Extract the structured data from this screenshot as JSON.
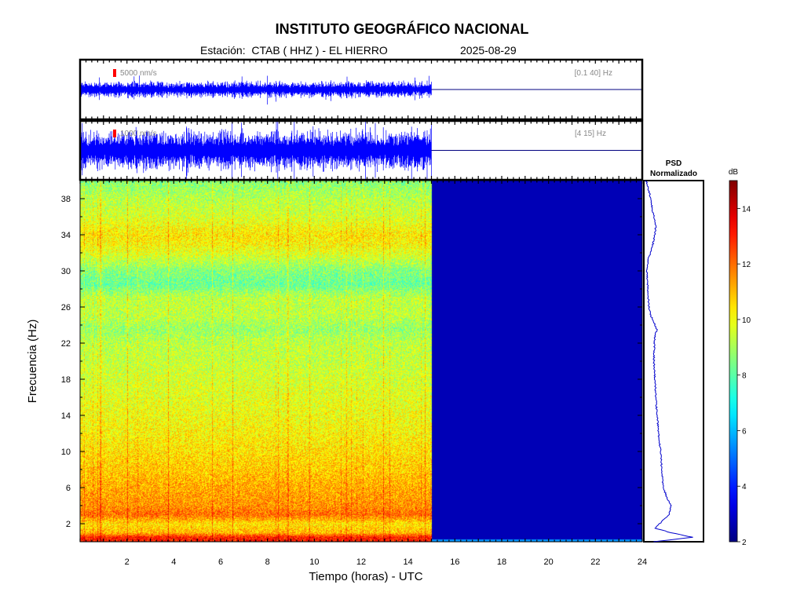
{
  "header": {
    "title": "INSTITUTO GEOGRÁFICO NACIONAL",
    "station": "Estación:  CTAB ( HHZ ) - EL HIERRO",
    "date": "2025-08-29"
  },
  "colors": {
    "trace": "#0000ff",
    "colormap": [
      "#00008f",
      "#0000ff",
      "#00ffff",
      "#ffff00",
      "#ff0000",
      "#800000"
    ]
  },
  "chart_data": [
    {
      "type": "line",
      "panel": "seismogram-broadband",
      "scale_label": "5000 nm/s",
      "band_label": "[0.1 40] Hz",
      "x_range": [
        0,
        24
      ],
      "data_end_hour": 15
    },
    {
      "type": "line",
      "panel": "seismogram-filtered",
      "scale_label": "1000 nm/s",
      "band_label": "[4 15] Hz",
      "x_range": [
        0,
        24
      ],
      "data_end_hour": 15
    },
    {
      "type": "heatmap",
      "panel": "spectrogram",
      "xlabel": "Tiempo (horas) - UTC",
      "ylabel": "Frecuencia  (Hz)",
      "xlim": [
        0,
        24
      ],
      "ylim": [
        0,
        40
      ],
      "x_ticks": [
        "2",
        "4",
        "6",
        "8",
        "10",
        "12",
        "14",
        "16",
        "18",
        "20",
        "22",
        "24"
      ],
      "y_ticks": [
        "2",
        "6",
        "10",
        "14",
        "18",
        "22",
        "26",
        "30",
        "34",
        "38"
      ],
      "data_end_hour": 15,
      "mean_db_profile": {
        "frequency": [
          0.5,
          1,
          2,
          3,
          4,
          6,
          8,
          10,
          12,
          14,
          16,
          18,
          20,
          22,
          23.5,
          25,
          27,
          28.5,
          30,
          32,
          33,
          34,
          35,
          36,
          38,
          40
        ],
        "db": [
          13,
          11,
          10.5,
          12,
          11.5,
          11.2,
          10.8,
          10.5,
          10.2,
          10,
          9.8,
          9.6,
          9.4,
          9.3,
          8.8,
          9.3,
          9.3,
          8.2,
          8.6,
          9.8,
          10.2,
          10.4,
          10,
          9.6,
          9.2,
          8.6
        ]
      }
    },
    {
      "type": "line",
      "panel": "psd",
      "title": "PSD",
      "subtitle": "Normalizado",
      "ylim": [
        0,
        40
      ],
      "frequency": [
        0,
        0.5,
        1,
        1.5,
        2,
        3,
        4,
        5,
        6,
        8,
        10,
        12,
        14,
        16,
        18,
        20,
        22,
        23,
        23.5,
        24,
        25,
        26,
        27,
        28,
        29,
        30,
        31,
        32,
        33,
        34,
        35,
        36,
        37,
        38,
        39,
        40
      ],
      "value": [
        0.18,
        1.0,
        0.55,
        0.2,
        0.3,
        0.5,
        0.55,
        0.45,
        0.38,
        0.35,
        0.32,
        0.28,
        0.25,
        0.22,
        0.2,
        0.18,
        0.19,
        0.21,
        0.25,
        0.2,
        0.12,
        0.08,
        0.06,
        0.05,
        0.04,
        0.03,
        0.05,
        0.1,
        0.16,
        0.2,
        0.22,
        0.18,
        0.14,
        0.12,
        0.06,
        0.02
      ]
    },
    {
      "type": "heatmap",
      "panel": "colorbar",
      "unit": "dB",
      "range": [
        2,
        15
      ],
      "ticks": [
        "2",
        "4",
        "6",
        "8",
        "10",
        "12",
        "14"
      ]
    }
  ]
}
